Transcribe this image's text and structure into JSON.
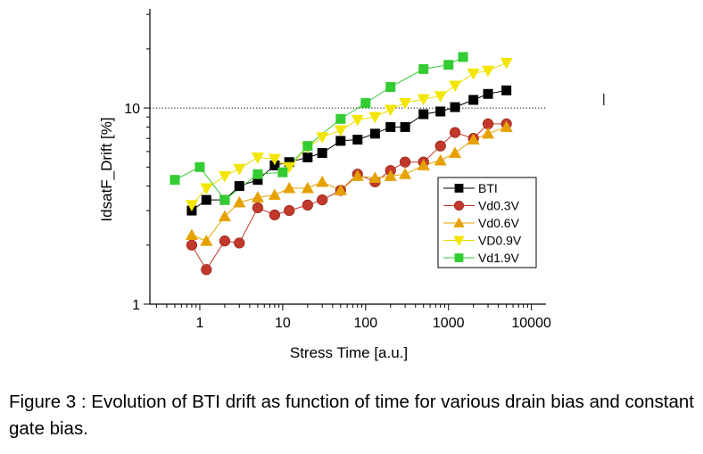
{
  "chart_data": {
    "type": "scatter",
    "title": "",
    "xlabel": "Stress Time [a.u.]",
    "ylabel": "IdsatF_Drift [%]",
    "x_scale": "log",
    "y_scale": "log",
    "xlim": [
      0.25,
      15000
    ],
    "ylim": [
      1,
      32
    ],
    "x_tick_labels": [
      "1",
      "10",
      "100",
      "1000",
      "10000"
    ],
    "x_ticks": [
      1,
      10,
      100,
      1000,
      10000
    ],
    "y_tick_labels": [
      "1",
      "10"
    ],
    "y_ticks": [
      1,
      10
    ],
    "reference_line": {
      "y": 10,
      "style": "dotted"
    },
    "grid": false,
    "legend_position": "bottom-right",
    "series": [
      {
        "name": "BTI",
        "marker": "square",
        "color": "#000000",
        "x": [
          0.8,
          1.2,
          2,
          3,
          5,
          8,
          12,
          20,
          30,
          50,
          80,
          130,
          200,
          300,
          500,
          800,
          1200,
          2000,
          3000,
          5000
        ],
        "y": [
          3.0,
          3.4,
          3.4,
          4.0,
          4.3,
          5.1,
          5.3,
          5.6,
          5.9,
          6.8,
          6.9,
          7.4,
          8.0,
          8.0,
          9.3,
          9.6,
          10.1,
          11.0,
          11.8,
          12.3
        ]
      },
      {
        "name": "Vd0.3V",
        "marker": "circle",
        "color": "#c0392b",
        "x": [
          0.8,
          1.2,
          2,
          3,
          5,
          8,
          12,
          20,
          30,
          50,
          80,
          130,
          200,
          300,
          500,
          800,
          1200,
          2000,
          3000,
          5000
        ],
        "y": [
          2.0,
          1.5,
          2.1,
          2.05,
          3.1,
          2.85,
          3.0,
          3.2,
          3.4,
          3.8,
          4.6,
          4.2,
          4.8,
          5.3,
          5.3,
          6.4,
          7.5,
          7.0,
          8.3,
          8.3
        ]
      },
      {
        "name": "Vd0.6V",
        "marker": "triangle-up",
        "color": "#e6a100",
        "x": [
          0.8,
          1.2,
          2,
          3,
          5,
          8,
          12,
          20,
          30,
          50,
          80,
          130,
          200,
          300,
          500,
          800,
          1200,
          2000,
          3000,
          5000
        ],
        "y": [
          2.25,
          2.1,
          2.8,
          3.3,
          3.5,
          3.6,
          3.9,
          3.9,
          4.2,
          3.8,
          4.5,
          4.4,
          4.5,
          4.6,
          5.1,
          5.4,
          5.9,
          6.9,
          7.4,
          8.0
        ]
      },
      {
        "name": "VD0.9V",
        "marker": "triangle-down",
        "color": "#f2e600",
        "x": [
          0.8,
          1.2,
          2,
          3,
          5,
          8,
          12,
          20,
          30,
          50,
          80,
          130,
          200,
          300,
          500,
          800,
          1200,
          2000,
          3000,
          5000
        ],
        "y": [
          3.2,
          3.9,
          4.5,
          4.9,
          5.6,
          5.5,
          5.0,
          6.3,
          7.1,
          7.7,
          8.7,
          9.0,
          9.8,
          10.6,
          11.1,
          11.5,
          13.0,
          15.0,
          15.5,
          17.0
        ]
      },
      {
        "name": "Vd1.9V",
        "marker": "square",
        "color": "#33cc33",
        "x": [
          0.5,
          1,
          2,
          5,
          10,
          20,
          50,
          100,
          200,
          500,
          1000,
          1500
        ],
        "y": [
          4.3,
          5.0,
          3.4,
          4.6,
          4.7,
          6.4,
          8.8,
          10.6,
          12.8,
          15.8,
          16.6,
          18.2
        ]
      }
    ]
  },
  "caption": {
    "text": "Figure 3 : Evolution of BTI drift as function of time for various drain bias and constant gate bias."
  }
}
